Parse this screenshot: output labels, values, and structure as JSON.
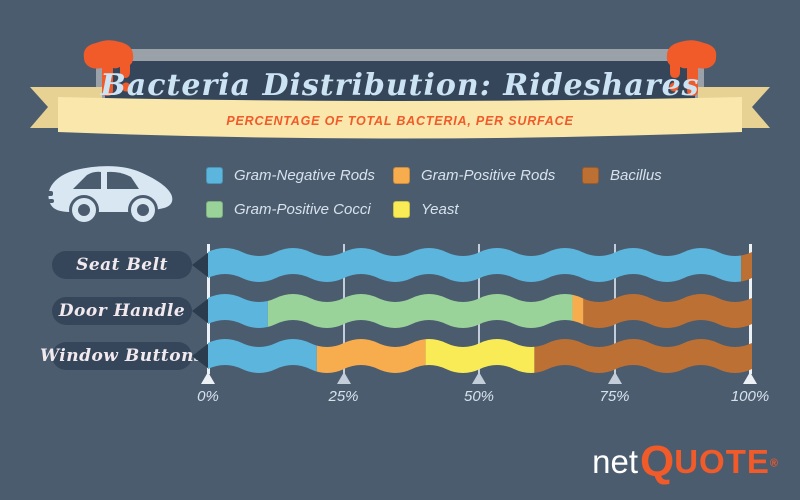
{
  "page": {
    "background": "#4C5C6F"
  },
  "header": {
    "title": "Bacteria Distribution: Rideshares",
    "subtitle": "PERCENTAGE OF TOTAL BACTERIA, PER SURFACE",
    "accent_orange": "#F15A29",
    "banner_color": "#FAE7AB"
  },
  "legend": {
    "items": [
      {
        "label": "Gram-Negative Rods",
        "color": "#5BB5DC"
      },
      {
        "label": "Gram-Positive Cocci",
        "color": "#9AD39A"
      },
      {
        "label": "Gram-Positive Rods",
        "color": "#F7AC4D"
      },
      {
        "label": "Yeast",
        "color": "#F8EB55"
      },
      {
        "label": "Bacillus",
        "color": "#BD7034"
      }
    ]
  },
  "chart_data": {
    "type": "bar",
    "orientation": "horizontal",
    "stacked": true,
    "unit": "percent",
    "title": "Bacteria Distribution: Rideshares",
    "subtitle": "PERCENTAGE OF TOTAL BACTERIA, PER SURFACE",
    "categories": [
      "Seat Belt",
      "Door Handle",
      "Window Buttons"
    ],
    "series": [
      {
        "name": "Gram-Negative Rods",
        "color": "#5BB5DC",
        "values": [
          98,
          11,
          20
        ]
      },
      {
        "name": "Gram-Positive Cocci",
        "color": "#9AD39A",
        "values": [
          0,
          56,
          0
        ]
      },
      {
        "name": "Gram-Positive Rods",
        "color": "#F7AC4D",
        "values": [
          0,
          2,
          20
        ]
      },
      {
        "name": "Yeast",
        "color": "#F8EB55",
        "values": [
          0,
          0,
          20
        ]
      },
      {
        "name": "Bacillus",
        "color": "#BD7034",
        "values": [
          2,
          31,
          40
        ]
      }
    ],
    "x_ticks": [
      "0%",
      "25%",
      "50%",
      "75%",
      "100%"
    ],
    "xlim": [
      0,
      100
    ],
    "grid": true,
    "legend_position": "top"
  },
  "footer": {
    "logo_net": "net",
    "logo_q": "Q",
    "logo_uote": "UOTE",
    "registered": "®"
  }
}
